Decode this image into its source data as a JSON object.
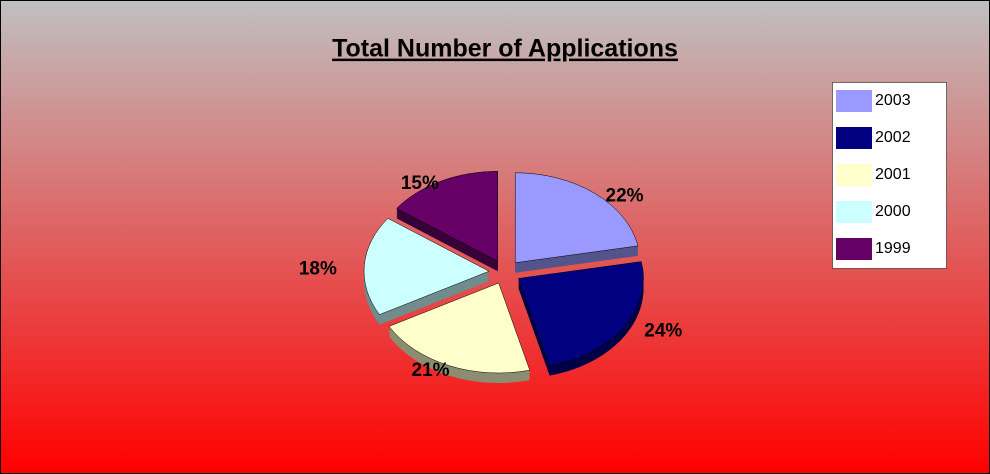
{
  "chart_data": {
    "type": "pie",
    "title": "Total Number of Applications",
    "categories": [
      "2003",
      "2002",
      "2001",
      "2000",
      "1999"
    ],
    "values": [
      22,
      24,
      21,
      18,
      15
    ],
    "value_labels": [
      "22%",
      "24%",
      "21%",
      "18%",
      "15%"
    ],
    "colors": [
      "#9999ff",
      "#000080",
      "#ffffcc",
      "#ccffff",
      "#660066"
    ],
    "legend": "right"
  }
}
